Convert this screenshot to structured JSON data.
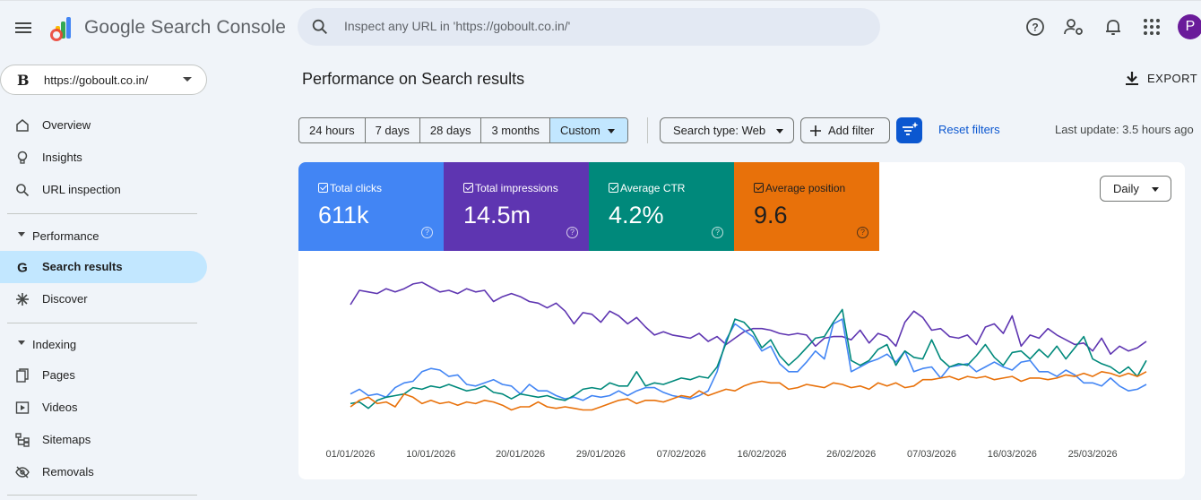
{
  "app": {
    "title": "Google Search Console",
    "search_placeholder": "Inspect any URL in 'https://goboult.co.in/'",
    "avatar_letter": "P"
  },
  "property": {
    "favicon_letter": "B",
    "url": "https://goboult.co.in/"
  },
  "sidebar": {
    "items_top": [
      {
        "label": "Overview",
        "icon": "home-icon"
      },
      {
        "label": "Insights",
        "icon": "lightbulb-icon"
      },
      {
        "label": "URL inspection",
        "icon": "search-icon"
      }
    ],
    "performance_section": "Performance",
    "performance_items": [
      {
        "label": "Search results",
        "icon": "google-g-icon",
        "active": true
      },
      {
        "label": "Discover",
        "icon": "asterisk-icon"
      }
    ],
    "indexing_section": "Indexing",
    "indexing_items": [
      {
        "label": "Pages",
        "icon": "pages-icon"
      },
      {
        "label": "Videos",
        "icon": "video-icon"
      },
      {
        "label": "Sitemaps",
        "icon": "sitemap-icon"
      },
      {
        "label": "Removals",
        "icon": "eye-off-icon"
      }
    ]
  },
  "main": {
    "title": "Performance on Search results",
    "export_label": "EXPORT",
    "date_ranges": [
      "24 hours",
      "7 days",
      "28 days",
      "3 months",
      "Custom"
    ],
    "selected_range": "Custom",
    "search_type": "Search type: Web",
    "add_filter": "Add filter",
    "reset_filters": "Reset filters",
    "last_update": "Last update: 3.5 hours ago"
  },
  "metrics": [
    {
      "label": "Total clicks",
      "value": "611k",
      "color": "#4285f4"
    },
    {
      "label": "Total impressions",
      "value": "14.5m",
      "color": "#5e35b1"
    },
    {
      "label": "Average CTR",
      "value": "4.2%",
      "color": "#00897b"
    },
    {
      "label": "Average position",
      "value": "9.6",
      "color": "#e8710a"
    }
  ],
  "granularity": "Daily",
  "chart_data": {
    "type": "line",
    "x_tick_labels": [
      "01/01/2026",
      "10/01/2026",
      "20/01/2026",
      "29/01/2026",
      "07/02/2026",
      "16/02/2026",
      "26/02/2026",
      "07/03/2026",
      "16/03/2026",
      "25/03/2026"
    ],
    "x_tick_days": [
      0,
      9,
      19,
      28,
      37,
      46,
      56,
      65,
      74,
      83
    ],
    "n_days": 90,
    "note_scale": "relative 0-100 per series (no y axis shown)",
    "series": [
      {
        "name": "Total impressions",
        "color": "#5e35b1",
        "values": [
          82,
          91,
          90,
          89,
          92,
          90,
          92,
          95,
          96,
          93,
          90,
          91,
          89,
          92,
          90,
          91,
          84,
          87,
          89,
          87,
          84,
          83,
          80,
          83,
          78,
          70,
          77,
          76,
          71,
          78,
          75,
          70,
          74,
          68,
          63,
          65,
          63,
          62,
          61,
          64,
          59,
          62,
          57,
          61,
          65,
          67,
          67,
          66,
          64,
          63,
          64,
          63,
          56,
          61,
          62,
          62,
          60,
          66,
          58,
          64,
          62,
          56,
          71,
          78,
          74,
          66,
          67,
          62,
          61,
          63,
          57,
          68,
          70,
          64,
          75,
          56,
          63,
          61,
          67,
          63,
          60,
          57,
          58,
          53,
          61,
          51,
          56,
          53,
          55,
          59
        ]
      },
      {
        "name": "Total clicks",
        "color": "#4285f4",
        "values": [
          26,
          29,
          25,
          26,
          24,
          30,
          33,
          34,
          40,
          42,
          41,
          37,
          38,
          32,
          31,
          33,
          35,
          32,
          31,
          26,
          32,
          28,
          28,
          25,
          23,
          24,
          22,
          25,
          24,
          25,
          28,
          25,
          28,
          30,
          30,
          27,
          25,
          24,
          23,
          25,
          28,
          40,
          60,
          70,
          66,
          62,
          53,
          56,
          45,
          40,
          40,
          46,
          53,
          48,
          70,
          73,
          40,
          43,
          46,
          48,
          51,
          46,
          53,
          40,
          42,
          43,
          36,
          43,
          44,
          45,
          40,
          43,
          46,
          43,
          41,
          46,
          47,
          40,
          40,
          37,
          41,
          38,
          33,
          33,
          31,
          36,
          31,
          28,
          29,
          32
        ]
      },
      {
        "name": "Average CTR",
        "color": "#00897b",
        "values": [
          20,
          21,
          17,
          22,
          24,
          25,
          26,
          30,
          29,
          31,
          30,
          32,
          30,
          28,
          29,
          31,
          27,
          26,
          23,
          26,
          25,
          24,
          25,
          23,
          22,
          25,
          29,
          30,
          29,
          33,
          31,
          31,
          40,
          31,
          33,
          32,
          34,
          36,
          35,
          37,
          36,
          43,
          58,
          73,
          71,
          65,
          55,
          60,
          50,
          44,
          49,
          55,
          61,
          62,
          71,
          79,
          47,
          44,
          47,
          54,
          57,
          44,
          53,
          49,
          48,
          60,
          48,
          43,
          45,
          44,
          50,
          57,
          49,
          44,
          52,
          53,
          48,
          54,
          49,
          56,
          48,
          55,
          62,
          48,
          45,
          43,
          39,
          43,
          37,
          47
        ]
      },
      {
        "name": "Average position",
        "color": "#e8710a",
        "values": [
          18,
          22,
          24,
          20,
          21,
          18,
          26,
          24,
          20,
          22,
          20,
          21,
          19,
          21,
          20,
          22,
          21,
          19,
          16,
          18,
          18,
          21,
          18,
          17,
          18,
          17,
          16,
          16,
          18,
          20,
          22,
          23,
          20,
          22,
          22,
          21,
          23,
          25,
          24,
          28,
          25,
          27,
          29,
          28,
          31,
          33,
          34,
          33,
          33,
          29,
          30,
          32,
          31,
          30,
          33,
          32,
          30,
          31,
          29,
          33,
          31,
          33,
          30,
          31,
          35,
          35,
          36,
          37,
          35,
          37,
          36,
          37,
          35,
          36,
          37,
          34,
          36,
          36,
          35,
          36,
          38,
          37,
          39,
          37,
          40,
          39,
          37,
          39,
          37,
          40
        ]
      }
    ]
  }
}
